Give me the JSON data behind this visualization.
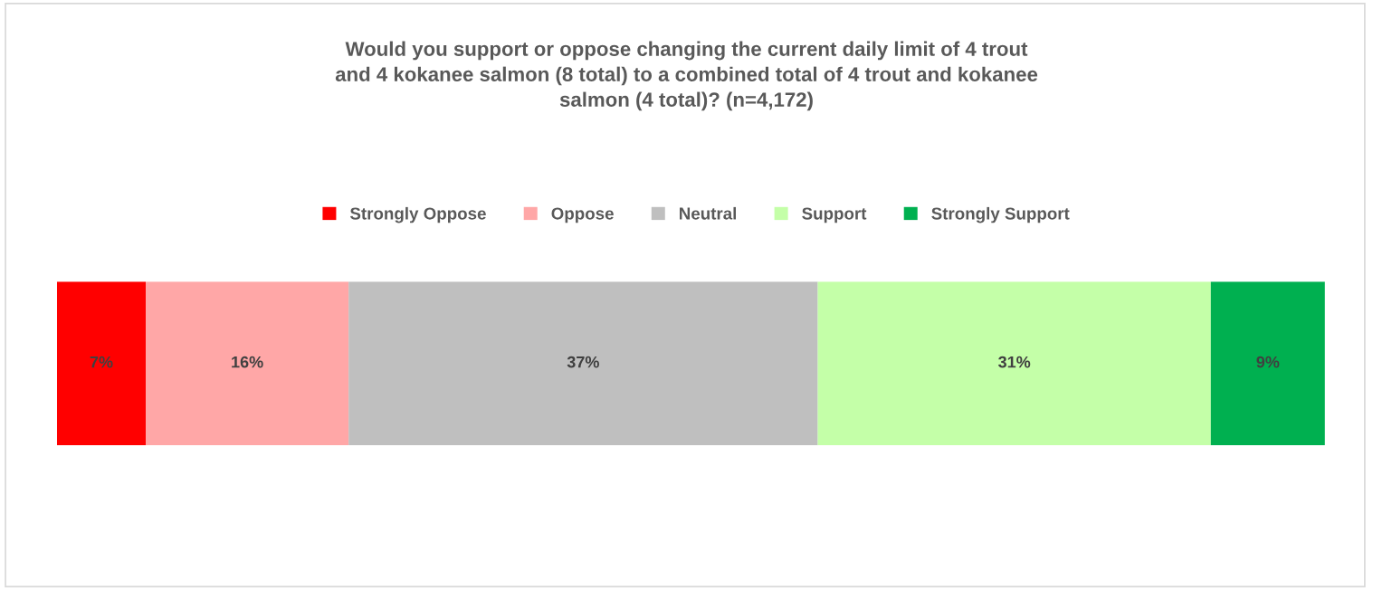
{
  "chart_data": {
    "type": "bar",
    "title": "Would you support or oppose changing the current daily limit of 4 trout\nand 4 kokanee salmon (8 total) to a combined total of 4 trout and kokanee\nsalmon (4 total)? (n=4,172)",
    "categories": [
      null
    ],
    "orientation": "horizontal",
    "stacked": true,
    "legend": "top",
    "tick_labels": false,
    "series": [
      {
        "name": "Strongly Oppose",
        "color": "#ff0000",
        "values": [
          7
        ],
        "value_labels": [
          "7%"
        ]
      },
      {
        "name": "Oppose",
        "color": "#ffa7a7",
        "values": [
          16
        ],
        "value_labels": [
          "16%"
        ]
      },
      {
        "name": "Neutral",
        "color": "#bfbfbf",
        "values": [
          37
        ],
        "value_labels": [
          "37%"
        ]
      },
      {
        "name": "Support",
        "color": "#c4ffa8",
        "values": [
          31
        ],
        "value_labels": [
          "31%"
        ]
      },
      {
        "name": "Strongly Support",
        "color": "#00b050",
        "values": [
          9
        ],
        "value_labels": [
          "9%"
        ]
      }
    ]
  }
}
